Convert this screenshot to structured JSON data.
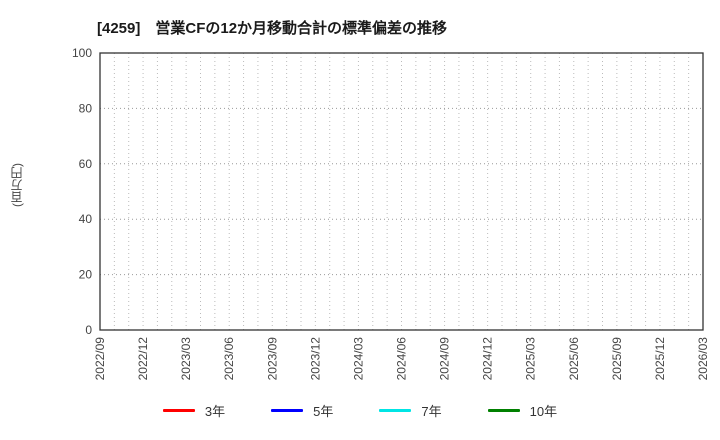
{
  "chart_data": {
    "type": "line",
    "title": "[4259]　営業CFの12か月移動合計の標準偏差の推移",
    "ylabel": "(百万円)",
    "xlabel": "",
    "ylim": [
      0,
      100
    ],
    "yticks": [
      0,
      20,
      40,
      60,
      80,
      100
    ],
    "x_tick_labels": [
      "2022/09",
      "2022/12",
      "2023/03",
      "2023/06",
      "2023/09",
      "2023/12",
      "2024/03",
      "2024/06",
      "2024/09",
      "2024/12",
      "2025/03",
      "2025/06",
      "2025/09",
      "2025/12",
      "2026/03"
    ],
    "x_minor_gridlines_per_label": 3,
    "grid": true,
    "legend_position": "bottom",
    "series": [
      {
        "name": "3年",
        "color": "#ff0000",
        "values": []
      },
      {
        "name": "5年",
        "color": "#0000ff",
        "values": []
      },
      {
        "name": "7年",
        "color": "#00e5e5",
        "values": []
      },
      {
        "name": "10年",
        "color": "#008000",
        "values": []
      }
    ]
  }
}
